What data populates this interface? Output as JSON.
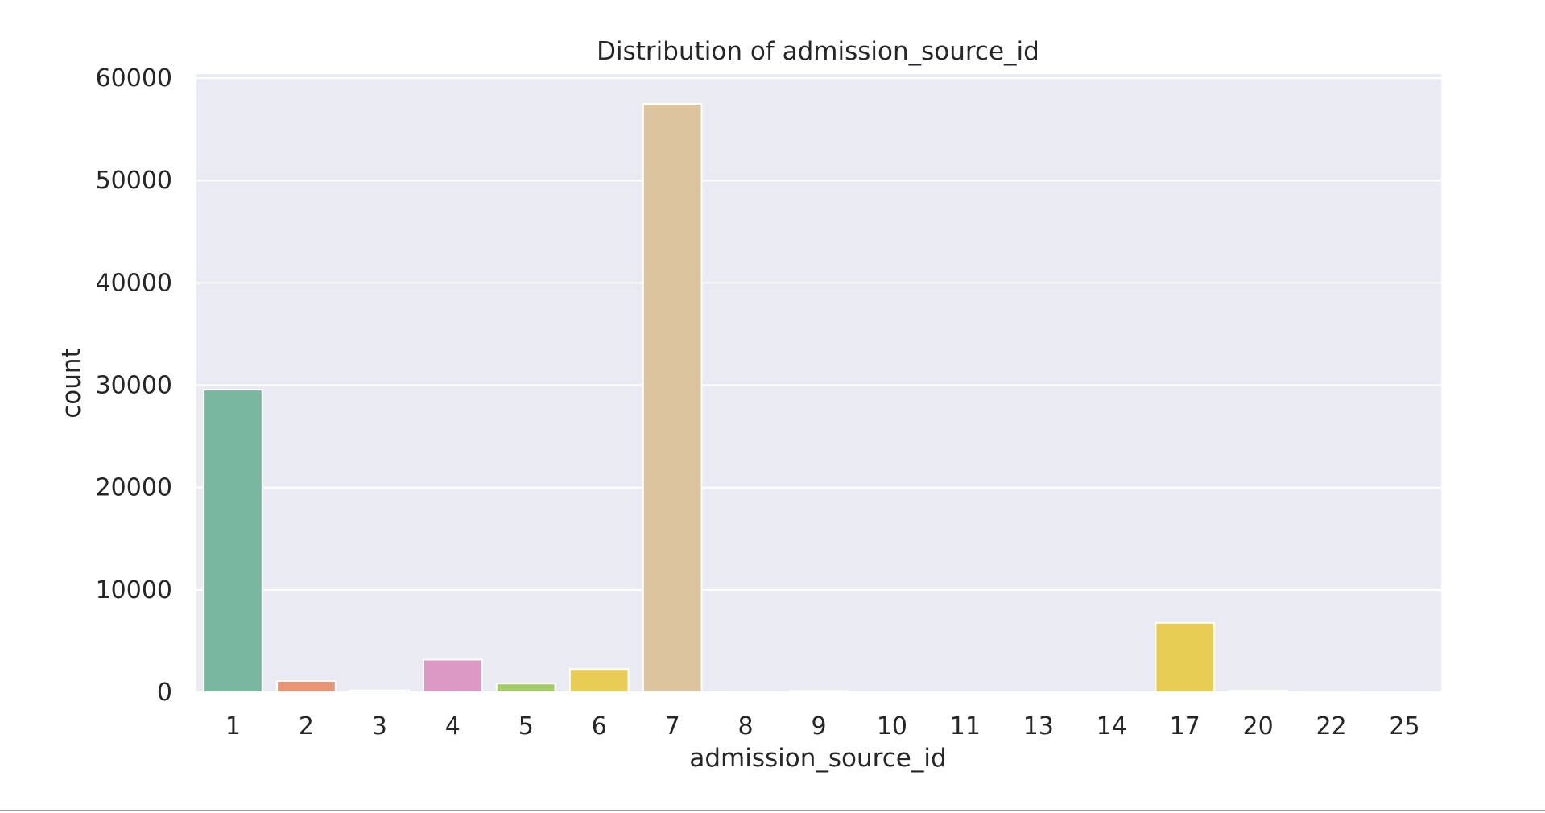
{
  "chart_data": {
    "type": "bar",
    "title": "Distribution of admission_source_id",
    "xlabel": "admission_source_id",
    "ylabel": "count",
    "categories": [
      "1",
      "2",
      "3",
      "4",
      "5",
      "6",
      "7",
      "8",
      "9",
      "10",
      "11",
      "13",
      "14",
      "17",
      "20",
      "22",
      "25"
    ],
    "values": [
      29565,
      1104,
      187,
      3187,
      855,
      2264,
      57494,
      16,
      125,
      8,
      2,
      1,
      2,
      6781,
      161,
      12,
      2
    ],
    "colors": [
      "#7ab79f",
      "#e89575",
      "#8ea0c9",
      "#dc99c6",
      "#a5cd6b",
      "#e8cc55",
      "#dcc49f",
      "#b3b3b3",
      "#7ab79f",
      "#e89575",
      "#8ea0c9",
      "#dc99c6",
      "#a5cd6b",
      "#e8cc55",
      "#dcc49f",
      "#b3b3b3",
      "#7ab79f"
    ],
    "yticks": [
      0,
      10000,
      20000,
      30000,
      40000,
      50000,
      60000
    ],
    "ylim": [
      0,
      60400
    ],
    "grid": true,
    "background_color": "#eaeaf2",
    "grid_color": "#ffffff"
  }
}
